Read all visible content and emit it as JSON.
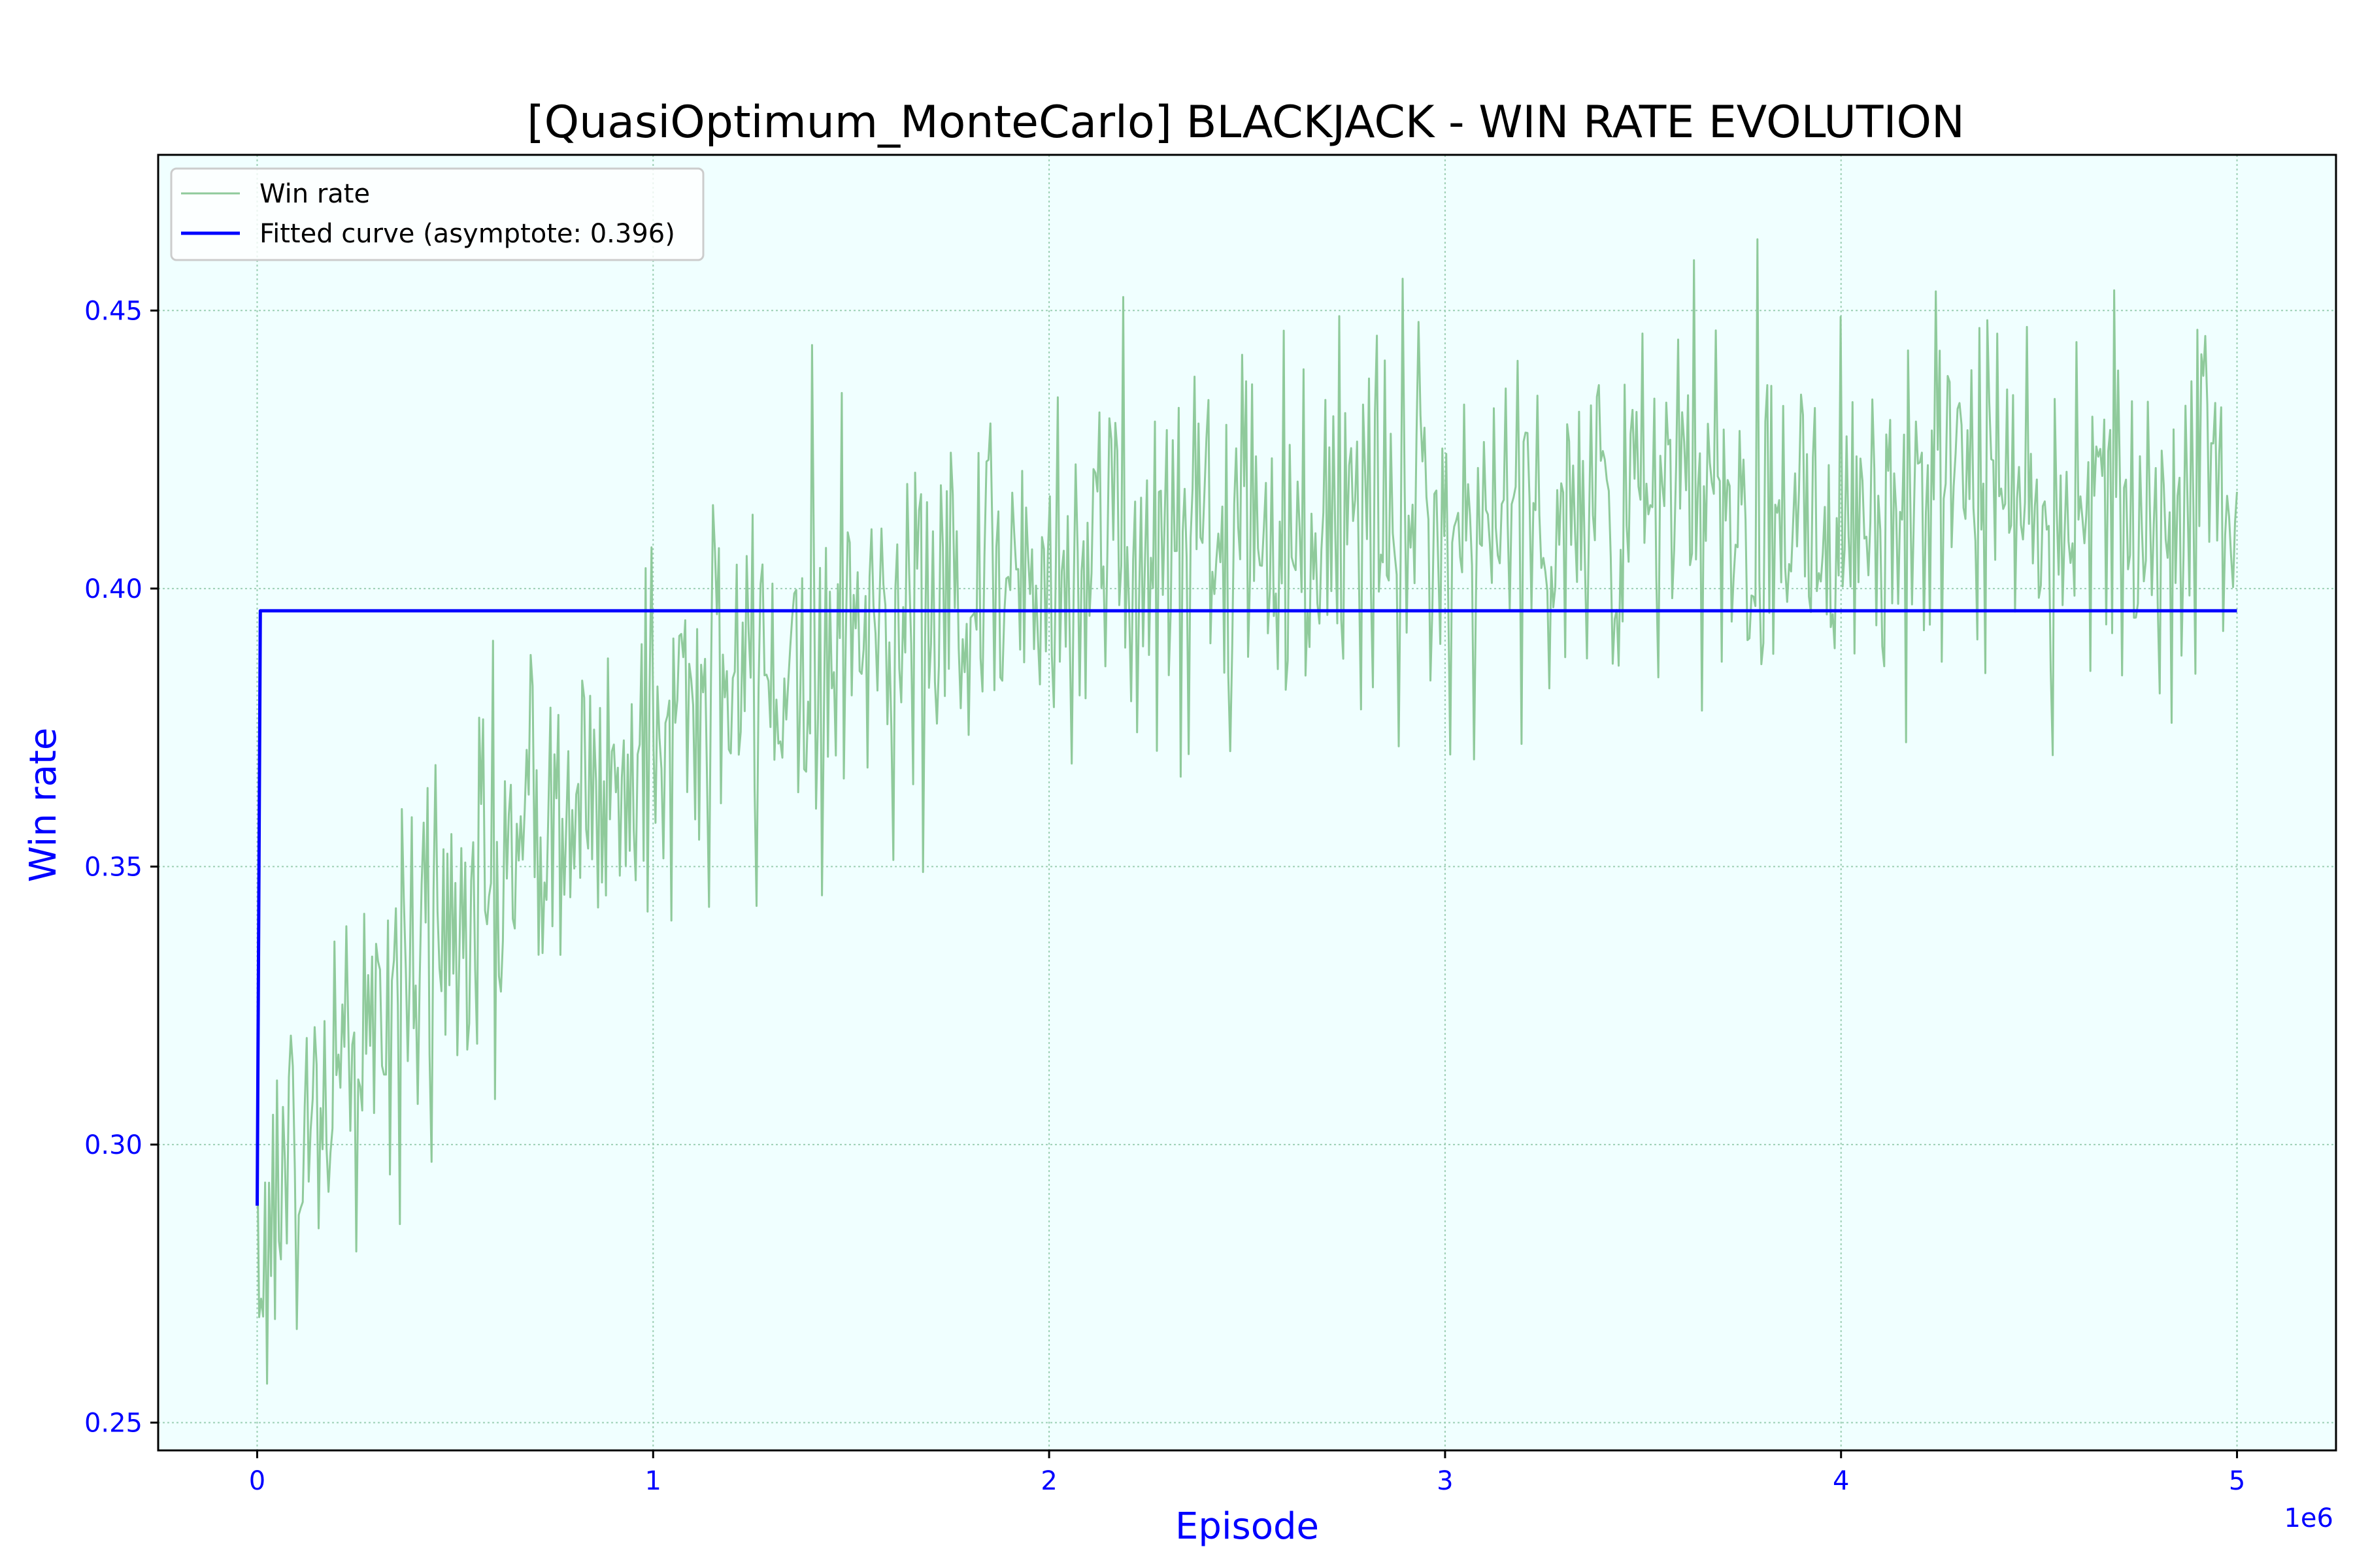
{
  "chart_data": {
    "type": "line",
    "title": "[QuasiOptimum_MonteCarlo] BLACKJACK - WIN RATE EVOLUTION",
    "xlabel": "Episode",
    "ylabel": "Win rate",
    "x_offset_label": "1e6",
    "xlim": [
      -250000,
      5250000
    ],
    "ylim": [
      0.245,
      0.478
    ],
    "xticks": [
      0,
      1000000,
      2000000,
      3000000,
      4000000,
      5000000
    ],
    "xtick_labels": [
      "0",
      "1",
      "2",
      "3",
      "4",
      "5"
    ],
    "yticks": [
      0.25,
      0.3,
      0.35,
      0.4,
      0.45
    ],
    "ytick_labels": [
      "0.25",
      "0.30",
      "0.35",
      "0.40",
      "0.45"
    ],
    "grid": true,
    "legend_position": "upper-left",
    "colors": {
      "plot_background": "#f0ffff",
      "axis_text": "#0000ff",
      "win_rate": "#8fca9b",
      "fitted": "#0000ff",
      "grid": "#9ccfb4"
    },
    "series": [
      {
        "name": "Win rate",
        "style": "noisy",
        "x_range": [
          0,
          5000000
        ],
        "samples": 1000,
        "spread": 0.017,
        "trend_points": [
          [
            0,
            0.285
          ],
          [
            100000,
            0.297
          ],
          [
            200000,
            0.312
          ],
          [
            300000,
            0.322
          ],
          [
            400000,
            0.33
          ],
          [
            500000,
            0.34
          ],
          [
            600000,
            0.348
          ],
          [
            750000,
            0.357
          ],
          [
            900000,
            0.366
          ],
          [
            1000000,
            0.374
          ],
          [
            1200000,
            0.382
          ],
          [
            1400000,
            0.389
          ],
          [
            1600000,
            0.395
          ],
          [
            1800000,
            0.4
          ],
          [
            2000000,
            0.404
          ],
          [
            2300000,
            0.408
          ],
          [
            2600000,
            0.411
          ],
          [
            3000000,
            0.413
          ],
          [
            3500000,
            0.414
          ],
          [
            4000000,
            0.416
          ],
          [
            4500000,
            0.416
          ],
          [
            5000000,
            0.416
          ]
        ]
      },
      {
        "name": "Fitted curve (asymptote: 0.396)",
        "style": "solid",
        "points": [
          [
            0,
            0.289
          ],
          [
            8000,
            0.396
          ],
          [
            5000000,
            0.396
          ]
        ]
      }
    ]
  }
}
